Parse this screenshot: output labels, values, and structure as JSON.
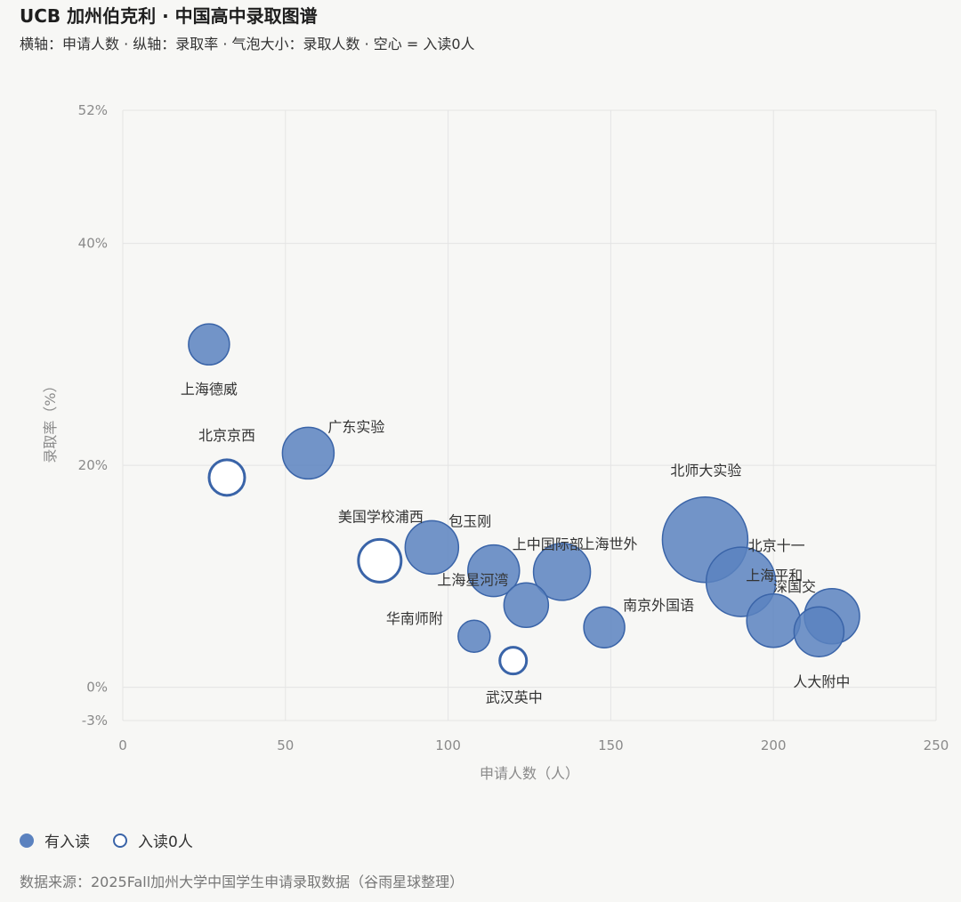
{
  "header": {
    "title": "UCB 加州伯克利 · 中国高中录取图谱",
    "subtitle": "横轴：申请人数 · 纵轴：录取率 · 气泡大小：录取人数 · 空心 = 入读0人"
  },
  "legend": {
    "filled_label": "有入读",
    "hollow_label": "入读0人"
  },
  "source": "数据来源：2025Fall加州大学中国学生申请录取数据（谷雨星球整理）",
  "colors": {
    "bubble_fill": "#5b82bf",
    "bubble_stroke": "#3a64a8",
    "hollow_fill": "#ffffff",
    "grid": "#e4e4e4",
    "axis_text": "#8a8a8a"
  },
  "chart_data": {
    "type": "scatter",
    "title": "",
    "xlabel": "申请人数（人）",
    "ylabel": "录取率（%）",
    "xlim": [
      0,
      250
    ],
    "ylim": [
      -3,
      52
    ],
    "x_ticks": [
      0,
      50,
      100,
      150,
      200,
      250
    ],
    "x_tick_labels": [
      "0",
      "50",
      "100",
      "150",
      "200",
      "250"
    ],
    "y_ticks": [
      -3,
      0,
      20,
      40,
      52
    ],
    "y_tick_labels": [
      "-3%",
      "0%",
      "20%",
      "40%",
      "52%"
    ],
    "grid": true,
    "legend_position": "bottom-left",
    "size_encodes": "录取人数",
    "points": [
      {
        "name": "上海德威",
        "x": 26.5,
        "y": 30.9,
        "r": 23,
        "hollow": false,
        "label_dx": 0,
        "label_dy": 50
      },
      {
        "name": "北京京西",
        "x": 32,
        "y": 18.9,
        "r": 20,
        "hollow": true,
        "label_dx": 0,
        "label_dy": -48
      },
      {
        "name": "广东实验",
        "x": 57,
        "y": 21.1,
        "r": 29,
        "hollow": false,
        "label_dx": 54,
        "label_dy": -30
      },
      {
        "name": "美国学校浦西",
        "x": 79,
        "y": 11.4,
        "r": 24,
        "hollow": true,
        "label_dx": 1,
        "label_dy": -50
      },
      {
        "name": "包玉刚",
        "x": 95,
        "y": 12.6,
        "r": 30,
        "hollow": false,
        "label_dx": 43,
        "label_dy": -30
      },
      {
        "name": "上中国际部",
        "x": 114,
        "y": 10.5,
        "r": 29,
        "hollow": false,
        "label_dx": 61,
        "label_dy": -30
      },
      {
        "name": "上海星河湾",
        "x": 124,
        "y": 7.4,
        "r": 25,
        "hollow": false,
        "label_dx": -60,
        "label_dy": -29
      },
      {
        "name": "上海世外",
        "x": 135,
        "y": 10.4,
        "r": 32,
        "hollow": false,
        "label_dx": 53,
        "label_dy": -32
      },
      {
        "name": "华南师附",
        "x": 108,
        "y": 4.6,
        "r": 18,
        "hollow": false,
        "label_dx": -67,
        "label_dy": -20
      },
      {
        "name": "武汉英中",
        "x": 120,
        "y": 2.4,
        "r": 15,
        "hollow": true,
        "label_dx": 1,
        "label_dy": 41
      },
      {
        "name": "南京外国语",
        "x": 148,
        "y": 5.4,
        "r": 23,
        "hollow": false,
        "label_dx": 61,
        "label_dy": -25
      },
      {
        "name": "北师大实验",
        "x": 179,
        "y": 13.3,
        "r": 48,
        "hollow": false,
        "label_dx": 1,
        "label_dy": -78
      },
      {
        "name": "北京十一",
        "x": 190,
        "y": 9.5,
        "r": 39,
        "hollow": false,
        "label_dx": 40,
        "label_dy": -41
      },
      {
        "name": "上海平和",
        "x": 200,
        "y": 6.0,
        "r": 30,
        "hollow": false,
        "label_dx": 1,
        "label_dy": -51
      },
      {
        "name": "深国交",
        "x": 218,
        "y": 6.4,
        "r": 31,
        "hollow": false,
        "label_dx": -42,
        "label_dy": -34
      },
      {
        "name": "人大附中",
        "x": 214,
        "y": 5.0,
        "r": 28,
        "hollow": false,
        "label_dx": 3,
        "label_dy": 56
      }
    ]
  }
}
